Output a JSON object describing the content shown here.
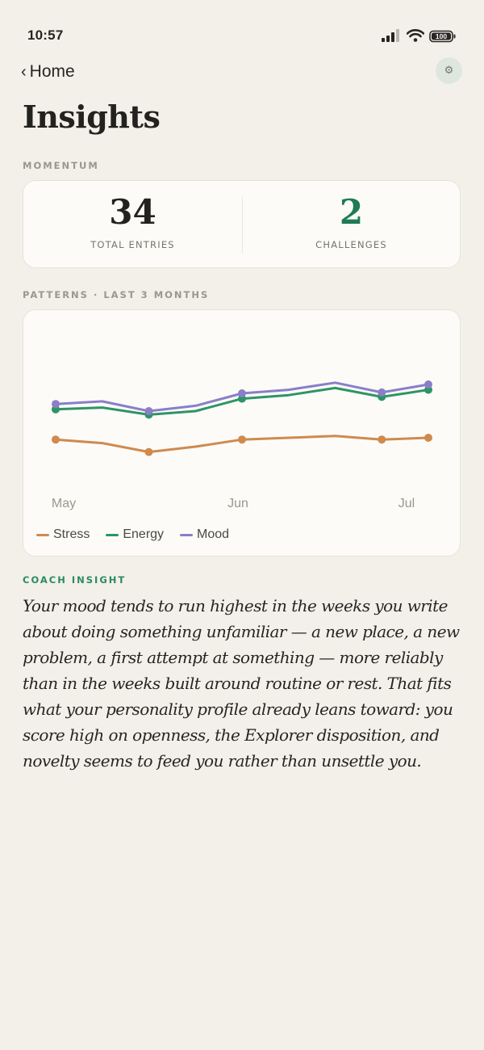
{
  "status_bar": {
    "time": "10:57",
    "battery": "100",
    "icons": [
      "signal-icon",
      "wifi-icon",
      "battery-icon"
    ]
  },
  "nav": {
    "back_label": "Home",
    "back_icon": "chevron-left-icon",
    "settings_icon": "gear-icon"
  },
  "page_title": "Insights",
  "momentum": {
    "section_label": "MOMENTUM",
    "stats": [
      {
        "value": "34",
        "label": "TOTAL ENTRIES"
      },
      {
        "value": "2",
        "label": "CHALLENGES"
      }
    ]
  },
  "patterns": {
    "section_label": "PATTERNS · LAST 3 MONTHS"
  },
  "chart_data": {
    "type": "line",
    "title": "",
    "xlabel": "",
    "ylabel": "",
    "x_tick_labels": [
      "May",
      "Jun",
      "Jul"
    ],
    "grid": false,
    "legend_placement": "bottom-left",
    "ylim": [
      0,
      10
    ],
    "point_count": 9,
    "marked_points": [
      0,
      2,
      4,
      7,
      8
    ],
    "series": [
      {
        "name": "Stress",
        "color": "#cf8a4d",
        "values": [
          3.4,
          3.2,
          2.7,
          3.0,
          3.4,
          3.5,
          3.6,
          3.4,
          3.5
        ]
      },
      {
        "name": "Energy",
        "color": "#2e9466",
        "values": [
          5.1,
          5.2,
          4.8,
          5.0,
          5.7,
          5.9,
          6.3,
          5.8,
          6.2
        ]
      },
      {
        "name": "Mood",
        "color": "#8a7fc8",
        "values": [
          5.4,
          5.55,
          5.0,
          5.3,
          6.0,
          6.2,
          6.6,
          6.05,
          6.5
        ]
      }
    ]
  },
  "coach": {
    "section_label": "COACH INSIGHT",
    "text": "Your mood tends to run highest in the weeks you write about doing something unfamiliar — a new place, a new problem, a first attempt at something — more reliably than in the weeks built around routine or rest. That fits what your personality profile already leans toward: you score high on openness, the Explorer disposition, and novelty seems to feed you rather than unsettle you."
  },
  "colors": {
    "background": "#f3f0ea",
    "card": "#fcfbf8",
    "accent_green": "#1f7a55",
    "label_gray": "#9a978f"
  }
}
